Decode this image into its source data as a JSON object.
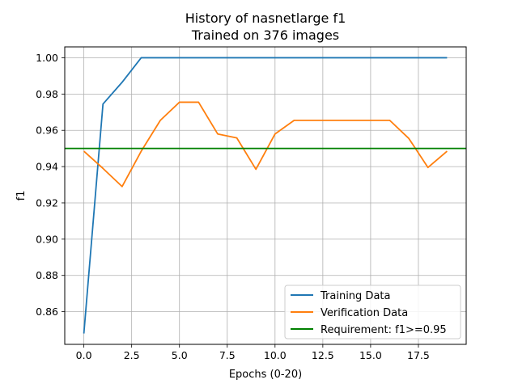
{
  "chart_data": {
    "type": "line",
    "title": "History of nasnetlarge f1",
    "subtitle": "Trained on 376 images",
    "xlabel": "Epochs (0-20)",
    "ylabel": "f1",
    "xlim": [
      -1,
      20
    ],
    "ylim": [
      0.842,
      1.006
    ],
    "xticks": [
      0.0,
      2.5,
      5.0,
      7.5,
      10.0,
      12.5,
      15.0,
      17.5
    ],
    "xtick_labels": [
      "0.0",
      "2.5",
      "5.0",
      "7.5",
      "10.0",
      "12.5",
      "15.0",
      "17.5"
    ],
    "yticks": [
      0.86,
      0.88,
      0.9,
      0.92,
      0.94,
      0.96,
      0.98,
      1.0
    ],
    "ytick_labels": [
      "0.86",
      "0.88",
      "0.90",
      "0.92",
      "0.94",
      "0.96",
      "0.98",
      "1.00"
    ],
    "grid": true,
    "legend_position": "lower-right",
    "x": [
      0,
      1,
      2,
      3,
      4,
      5,
      6,
      7,
      8,
      9,
      10,
      11,
      12,
      13,
      14,
      15,
      16,
      17,
      18,
      19
    ],
    "series": [
      {
        "name": "Training Data",
        "color": "#1f77b4",
        "values": [
          0.848,
          0.9745,
          0.9865,
          1.0,
          1.0,
          1.0,
          1.0,
          1.0,
          1.0,
          1.0,
          1.0,
          1.0,
          1.0,
          1.0,
          1.0,
          1.0,
          1.0,
          1.0,
          1.0,
          1.0
        ]
      },
      {
        "name": "Verification Data",
        "color": "#ff7f0e",
        "values": [
          0.9485,
          0.939,
          0.929,
          0.9485,
          0.9655,
          0.9755,
          0.9755,
          0.958,
          0.9558,
          0.9385,
          0.958,
          0.9655,
          0.9655,
          0.9655,
          0.9655,
          0.9655,
          0.9655,
          0.9555,
          0.9395,
          0.9485
        ]
      }
    ],
    "hlines": [
      {
        "name": "Requirement: f1>=0.95",
        "color": "#008000",
        "y": 0.95
      }
    ]
  }
}
